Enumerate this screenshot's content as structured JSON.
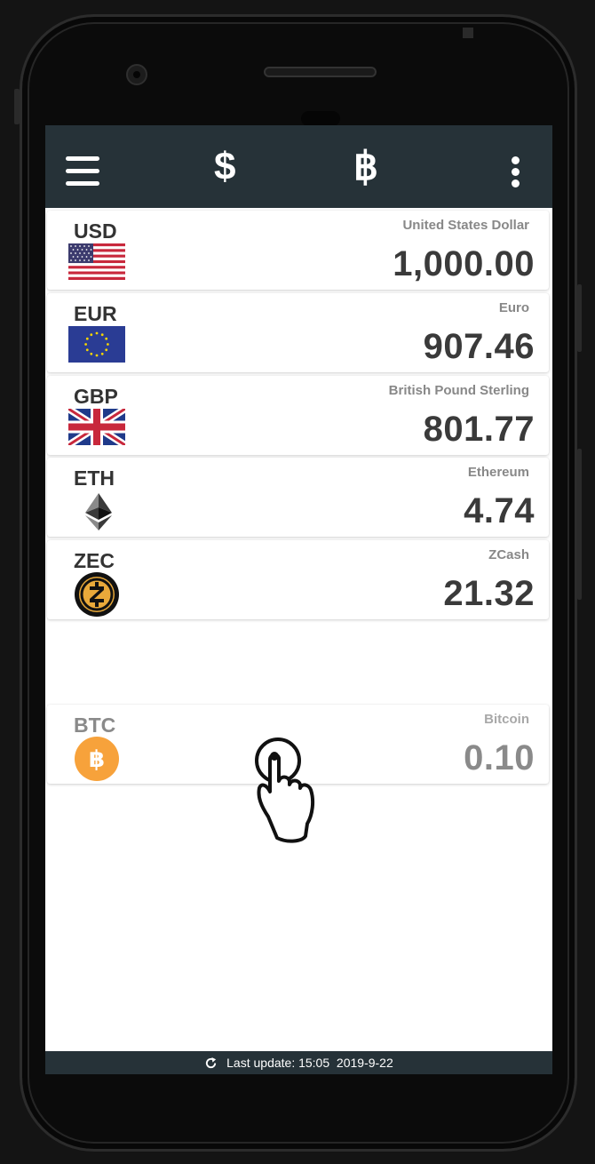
{
  "appbar": {
    "menu_icon": "hamburger-menu-icon",
    "fiat_symbol": "$",
    "crypto_symbol": "฿",
    "more_icon": "kebab-menu-icon",
    "background": "#263238"
  },
  "currencies": [
    {
      "code": "USD",
      "name": "United States Dollar",
      "amount": "1,000.00",
      "icon": "us-flag-icon"
    },
    {
      "code": "EUR",
      "name": "Euro",
      "amount": "907.46",
      "icon": "eu-flag-icon"
    },
    {
      "code": "GBP",
      "name": "British Pound Sterling",
      "amount": "801.77",
      "icon": "uk-flag-icon"
    },
    {
      "code": "ETH",
      "name": "Ethereum",
      "amount": "4.74",
      "icon": "ethereum-icon"
    },
    {
      "code": "ZEC",
      "name": "ZCash",
      "amount": "21.32",
      "icon": "zcash-icon"
    }
  ],
  "dragging_item": {
    "code": "BTC",
    "name": "Bitcoin",
    "amount": "0.10",
    "icon": "bitcoin-icon"
  },
  "status": {
    "label": "Last update:",
    "time": "15:05",
    "date": "2019-9-22",
    "icon": "refresh-icon"
  },
  "gesture": {
    "icon": "hand-pointer-icon"
  }
}
